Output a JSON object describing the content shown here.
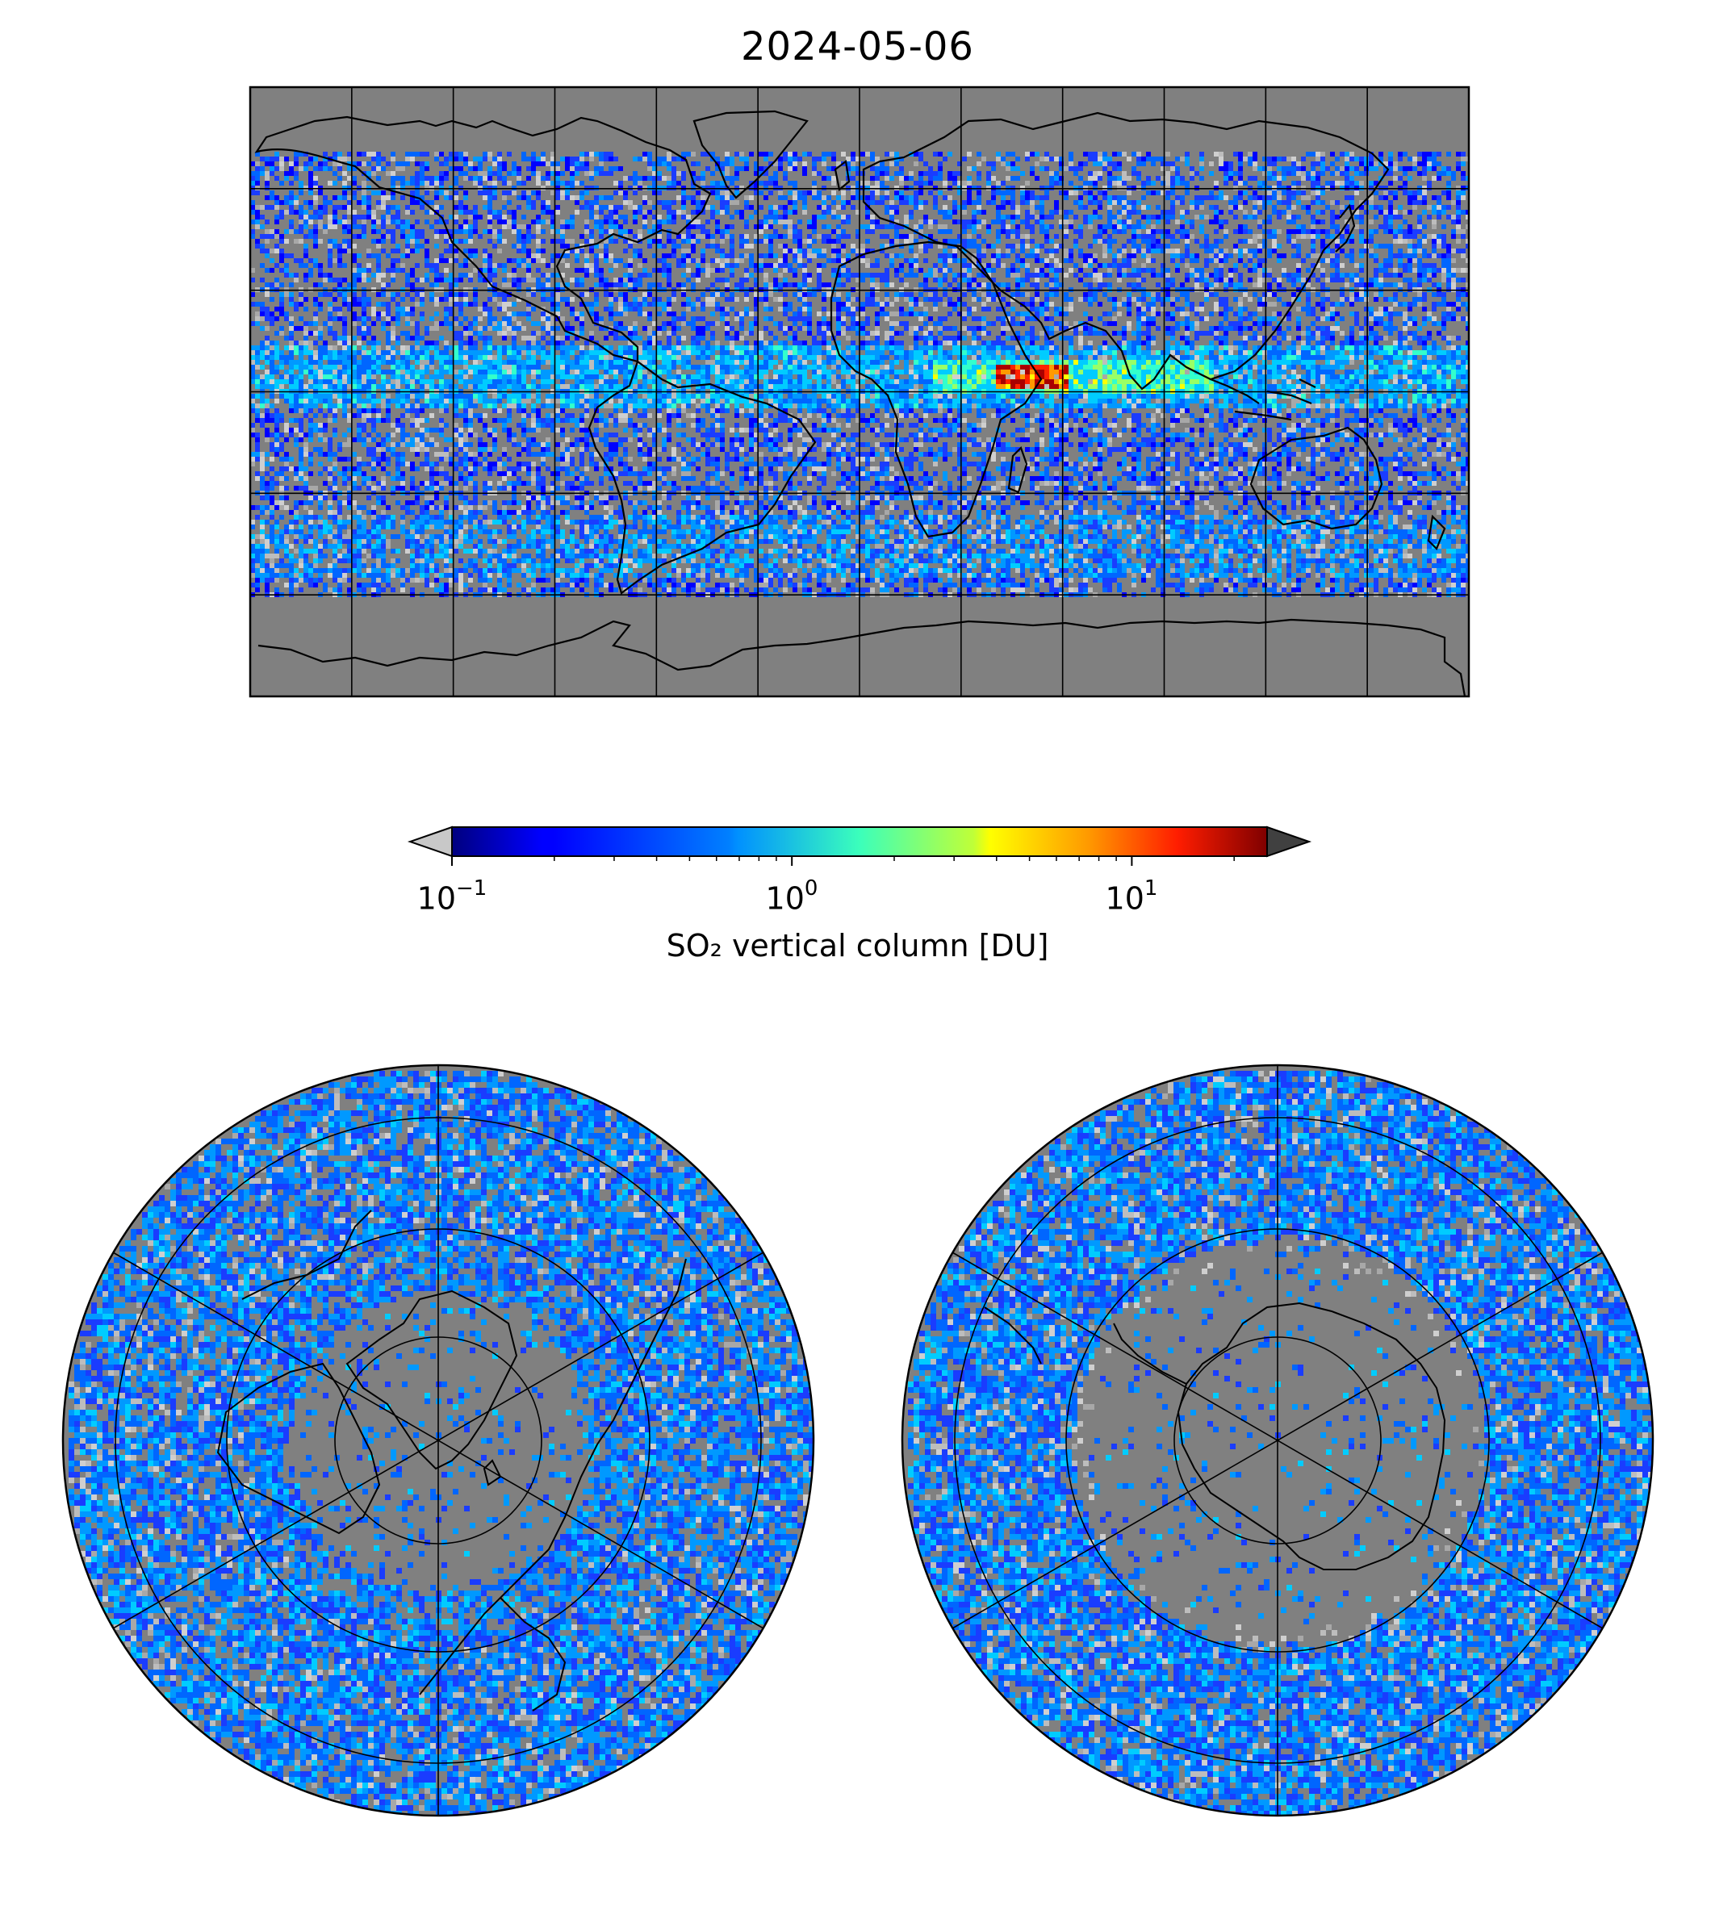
{
  "figure": {
    "title": "2024-05-06"
  },
  "colorbar": {
    "label": "SO₂ vertical column [DU]",
    "scale": "log",
    "range": [
      0.1,
      25
    ],
    "extend": "both",
    "colormap": "jet",
    "under_color": "#c8c8c8",
    "over_color": "#404040",
    "ticks": [
      {
        "base": "10",
        "exp": "−1",
        "value": 0.1
      },
      {
        "base": "10",
        "exp": "0",
        "value": 1
      },
      {
        "base": "10",
        "exp": "1",
        "value": 10
      }
    ]
  },
  "maps": [
    {
      "name": "global",
      "projection": "equirectangular",
      "gridlines_lon_deg": 30,
      "gridlines_lat_deg": 30
    },
    {
      "name": "north-polar",
      "projection": "north-polar-stereographic"
    },
    {
      "name": "south-polar",
      "projection": "south-polar-stereographic"
    }
  ],
  "colors": {
    "ocean_background": "#808080",
    "no_data": "#808080",
    "coastline": "#000000",
    "grid": "#000000"
  }
}
